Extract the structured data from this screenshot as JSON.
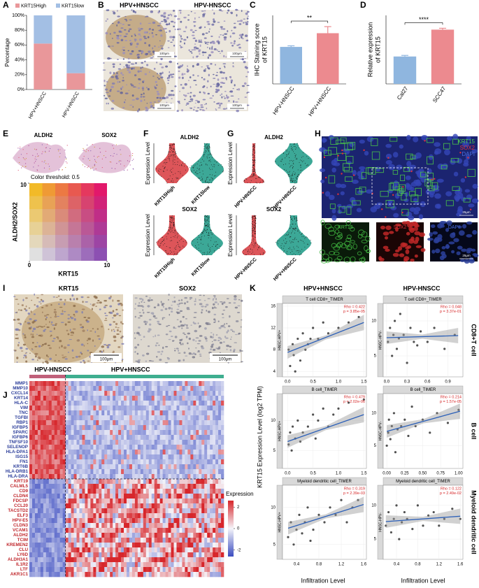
{
  "panel_labels": [
    "A",
    "B",
    "C",
    "D",
    "E",
    "F",
    "G",
    "H",
    "I",
    "J",
    "K"
  ],
  "chart_data": [
    {
      "type": "stacked_bar",
      "ylabel": "Percentage",
      "categories": [
        "HPV+HNSCC",
        "HPV-HNSCC"
      ],
      "series": [
        {
          "name": "KRT15High",
          "color": "#e9979a",
          "values": [
            62,
            22
          ]
        },
        {
          "name": "KRT15low",
          "color": "#a3bfe4",
          "values": [
            38,
            78
          ]
        }
      ],
      "ylim": [
        0,
        100
      ],
      "yticks": [
        {
          "value": 0,
          "label": "0%"
        },
        {
          "value": 20,
          "label": "20%"
        },
        {
          "value": 40,
          "label": "40%"
        },
        {
          "value": 60,
          "label": "60%"
        },
        {
          "value": 80,
          "label": "80%"
        },
        {
          "value": 100,
          "label": "100%"
        }
      ]
    },
    {
      "type": "bar",
      "ylabel": [
        "IHC Staining score",
        "of KRT15"
      ],
      "categories": [
        "HPV-HNSCC",
        "HPV+HNSCC"
      ],
      "values": [
        1.35,
        1.85
      ],
      "errors": [
        0.04,
        0.24
      ],
      "colors": [
        "#8fb6df",
        "#ec8a8f"
      ],
      "significance": "**",
      "ylim": [
        0,
        2.5
      ]
    },
    {
      "type": "bar",
      "ylabel": [
        "Relative expression",
        "of KRT15"
      ],
      "categories": [
        "Cal27",
        "SCC47"
      ],
      "values": [
        1.0,
        1.98
      ],
      "errors": [
        0.04,
        0.05
      ],
      "colors": [
        "#8fb6df",
        "#ec8a8f"
      ],
      "significance": "****",
      "ylim": [
        0,
        2.5
      ]
    },
    {
      "type": "scatter",
      "title": "T cell CD8+_TIMER",
      "strip": "HNSC-HPV+",
      "annotation": [
        "Rho = 0.422",
        "p = 3.85e-05"
      ],
      "x": [
        0.02,
        0.05,
        0.1,
        0.12,
        0.2,
        0.25,
        0.3,
        0.35,
        0.4,
        0.5,
        0.6,
        0.7,
        0.8,
        1.0,
        1.2,
        1.4,
        0.15,
        0.45
      ],
      "y": [
        8,
        5,
        9,
        7,
        10,
        6,
        11,
        8,
        9,
        12,
        10,
        13,
        11,
        12,
        13,
        14,
        4,
        10
      ],
      "trend": {
        "x": [
          0,
          1.5
        ],
        "y": [
          7.5,
          13
        ]
      },
      "xlim": [
        -0.1,
        1.55
      ],
      "xticks": [
        {
          "value": 0,
          "label": "0.0"
        },
        0.5,
        {
          "value": 1,
          "label": "1.0"
        },
        1.5
      ],
      "ylim": [
        3,
        16.5
      ],
      "yticks": [
        4,
        8,
        12,
        16
      ]
    },
    {
      "type": "scatter",
      "title": "T cell CD8+_TIMER",
      "strip": "HNSC-HPV-",
      "annotation": [
        "Rho = 0.048",
        "p = 3.37e-01"
      ],
      "x": [
        0.02,
        0.05,
        0.08,
        0.1,
        0.12,
        0.15,
        0.18,
        0.2,
        0.25,
        0.3,
        0.35,
        0.4,
        0.45,
        0.5,
        0.6,
        0.7,
        0.85,
        1.0
      ],
      "y": [
        7,
        9,
        5,
        8,
        10,
        6,
        7.5,
        11,
        8,
        4,
        9,
        7,
        6.5,
        8.5,
        7,
        9,
        6,
        8
      ],
      "trend": {
        "x": [
          0,
          1.05
        ],
        "y": [
          7.6,
          7.9
        ]
      },
      "xlim": [
        -0.05,
        1.12
      ],
      "xticks": [
        {
          "value": 0,
          "label": "0.0"
        },
        0.3,
        0.6,
        0.9
      ],
      "ylim": [
        2,
        12.5
      ],
      "yticks": [
        5,
        10
      ]
    },
    {
      "type": "scatter",
      "title": "B cell_TIMER",
      "strip": "HNSC-HPV+",
      "annotation": [
        "Rho = 0.479",
        "p = 2.02e-06"
      ],
      "x": [
        0.02,
        0.05,
        0.08,
        0.1,
        0.15,
        0.2,
        0.25,
        0.3,
        0.4,
        0.5,
        0.55,
        0.6,
        0.7,
        0.8,
        0.9,
        1.0,
        1.2,
        1.5
      ],
      "y": [
        6,
        8,
        5,
        9,
        7,
        10,
        6.5,
        8,
        9,
        11,
        7,
        10,
        12,
        9,
        11,
        12,
        13,
        13.5
      ],
      "trend": {
        "x": [
          0,
          1.5
        ],
        "y": [
          6.5,
          11
        ]
      },
      "xlim": [
        -0.1,
        1.55
      ],
      "xticks": [
        {
          "value": 0,
          "label": "0.0"
        },
        0.5,
        {
          "value": 1,
          "label": "1.0"
        },
        1.5
      ],
      "ylim": [
        2,
        14.5
      ],
      "yticks": [
        5,
        10
      ]
    },
    {
      "type": "scatter",
      "title": "B cell_TIMER",
      "strip": "HNSC-HPV-",
      "annotation": [
        "Rho = 0.214",
        "p = 1.57e-05"
      ],
      "x": [
        0.0,
        0.02,
        0.03,
        0.05,
        0.07,
        0.1,
        0.12,
        0.15,
        0.2,
        0.25,
        0.3,
        0.35,
        0.4,
        0.5,
        0.6,
        0.7,
        0.85,
        1.0
      ],
      "y": [
        5,
        7,
        9,
        6,
        8,
        10,
        4,
        7.5,
        8,
        9,
        6.5,
        11,
        8,
        9,
        7,
        10,
        8.5,
        10.5
      ],
      "trend": {
        "x": [
          0,
          1.02
        ],
        "y": [
          7.2,
          10.3
        ]
      },
      "xlim": [
        -0.05,
        1.06
      ],
      "xticks": [
        {
          "value": 0,
          "label": "0.00"
        },
        0.25,
        {
          "value": 0.5,
          "label": "0.50"
        },
        0.75,
        {
          "value": 1,
          "label": "1.00"
        }
      ],
      "ylim": [
        1.5,
        13
      ],
      "yticks": [
        5,
        10
      ]
    },
    {
      "type": "scatter",
      "title": "Myeloid dendritic cell_TIMER",
      "strip": "HNSC-HPV+",
      "annotation": [
        "Rho = 0.319",
        "p = 2.39e-03"
      ],
      "x": [
        0.25,
        0.3,
        0.35,
        0.4,
        0.45,
        0.5,
        0.55,
        0.6,
        0.7,
        0.8,
        0.9,
        1.0,
        1.1,
        1.2,
        1.3,
        1.4,
        1.5,
        0.65
      ],
      "y": [
        6,
        8,
        5,
        7,
        9,
        6.5,
        8,
        10,
        7,
        9,
        8,
        10,
        9,
        11,
        8,
        10,
        11,
        5.5
      ],
      "trend": {
        "x": [
          0.25,
          1.6
        ],
        "y": [
          7.2,
          10.4
        ]
      },
      "xlim": [
        0.15,
        1.65
      ],
      "xticks": [
        0.4,
        0.8,
        1.2,
        1.6
      ],
      "ylim": [
        3,
        13
      ],
      "yticks": [
        5,
        10
      ]
    },
    {
      "type": "scatter",
      "title": "Myeloid dendritic cell_TIMER",
      "strip": "HNSC-HPV-",
      "annotation": [
        "Rho = 0.122",
        "p = 2.49e-02"
      ],
      "x": [
        0.2,
        0.25,
        0.3,
        0.35,
        0.4,
        0.45,
        0.5,
        0.55,
        0.6,
        0.7,
        0.8,
        0.9,
        1.0,
        1.1,
        1.2,
        1.3,
        1.45,
        1.6
      ],
      "y": [
        7,
        9,
        6,
        8,
        10,
        5,
        7.5,
        9,
        8,
        6.5,
        10,
        7,
        8.5,
        9,
        7,
        8,
        9.5,
        8
      ],
      "trend": {
        "x": [
          0.2,
          1.6
        ],
        "y": [
          7.6,
          8.4
        ]
      },
      "xlim": [
        0.15,
        1.65
      ],
      "xticks": [
        0.4,
        0.8,
        1.2,
        1.6
      ],
      "ylim": [
        2,
        13
      ],
      "yticks": [
        5,
        10
      ]
    }
  ],
  "panel_b": {
    "columns": [
      "HPV+HNSCC",
      "HPV-HNSCC"
    ],
    "scale_bar": "100μm"
  },
  "panel_e": {
    "titles": [
      "ALDH2",
      "SOX2"
    ],
    "threshold": "Color threshold: 0.5",
    "ylabel": "ALDH2/SOX2",
    "xlabel": "KRT15",
    "lim": [
      0,
      10
    ],
    "xticks": [
      0,
      10
    ],
    "yticks": [
      10
    ]
  },
  "panel_f": {
    "titles": [
      "ALDH2",
      "SOX2"
    ],
    "ylabel": "Expression Level",
    "categories": [
      "KRT15High",
      "KRT15low"
    ]
  },
  "panel_g": {
    "titles": [
      "ALDH2",
      "SOX2"
    ],
    "ylabel": "Expression Level",
    "categories": [
      "HPV-HNSCC",
      "HPV+HNSCC"
    ]
  },
  "panel_h": {
    "channels": [
      "KRT15",
      "SOX2",
      "DAPI"
    ],
    "scale_bar": "25μm"
  },
  "panel_i": {
    "titles": [
      "KRT15",
      "SOX2"
    ],
    "scale_bar": "100μm"
  },
  "panel_j": {
    "groups": [
      "HPV-HNSCC",
      "HPV+HNSCC"
    ],
    "genes_blue": [
      "MMP1",
      "MMP10",
      "CXCL14",
      "KRT14",
      "HLA-C",
      "VIM",
      "TNC",
      "TGFBI",
      "RBP1",
      "IGFBP5",
      "SPARC",
      "IGFBP6",
      "TNFSF10",
      "SELENOP",
      "HLA-DPA1",
      "ISG15",
      "FN1",
      "KRT6B",
      "HLA-DRB1",
      "HLA-DRA"
    ],
    "genes_red": [
      "KRT19",
      "CALML5",
      "CD9",
      "CLDN4",
      "FDCSP",
      "CCL20",
      "TACSTD2",
      "ELF3",
      "HPV-E5",
      "CLDN3",
      "VCAM1",
      "ALDH2",
      "TCIM",
      "KREMEN2",
      "CLU",
      "LY6D",
      "ALDH3A1",
      "IL1R2",
      "LTF",
      "AKR1C1"
    ],
    "legend_title": "Expression",
    "legend_ticks": [
      2,
      0,
      -2
    ],
    "legend_lim": [
      -2.6,
      2.6
    ]
  },
  "panel_k": {
    "columns": [
      "HPV+HNSCC",
      "HPV-HNSCC"
    ],
    "rows": [
      "CD8+T cell",
      "B cell",
      "Myeloid dendritic cell"
    ],
    "ylabel": "KRT15 Expression Level (log2 TPM)",
    "xlabel": "Infiltration Level"
  }
}
